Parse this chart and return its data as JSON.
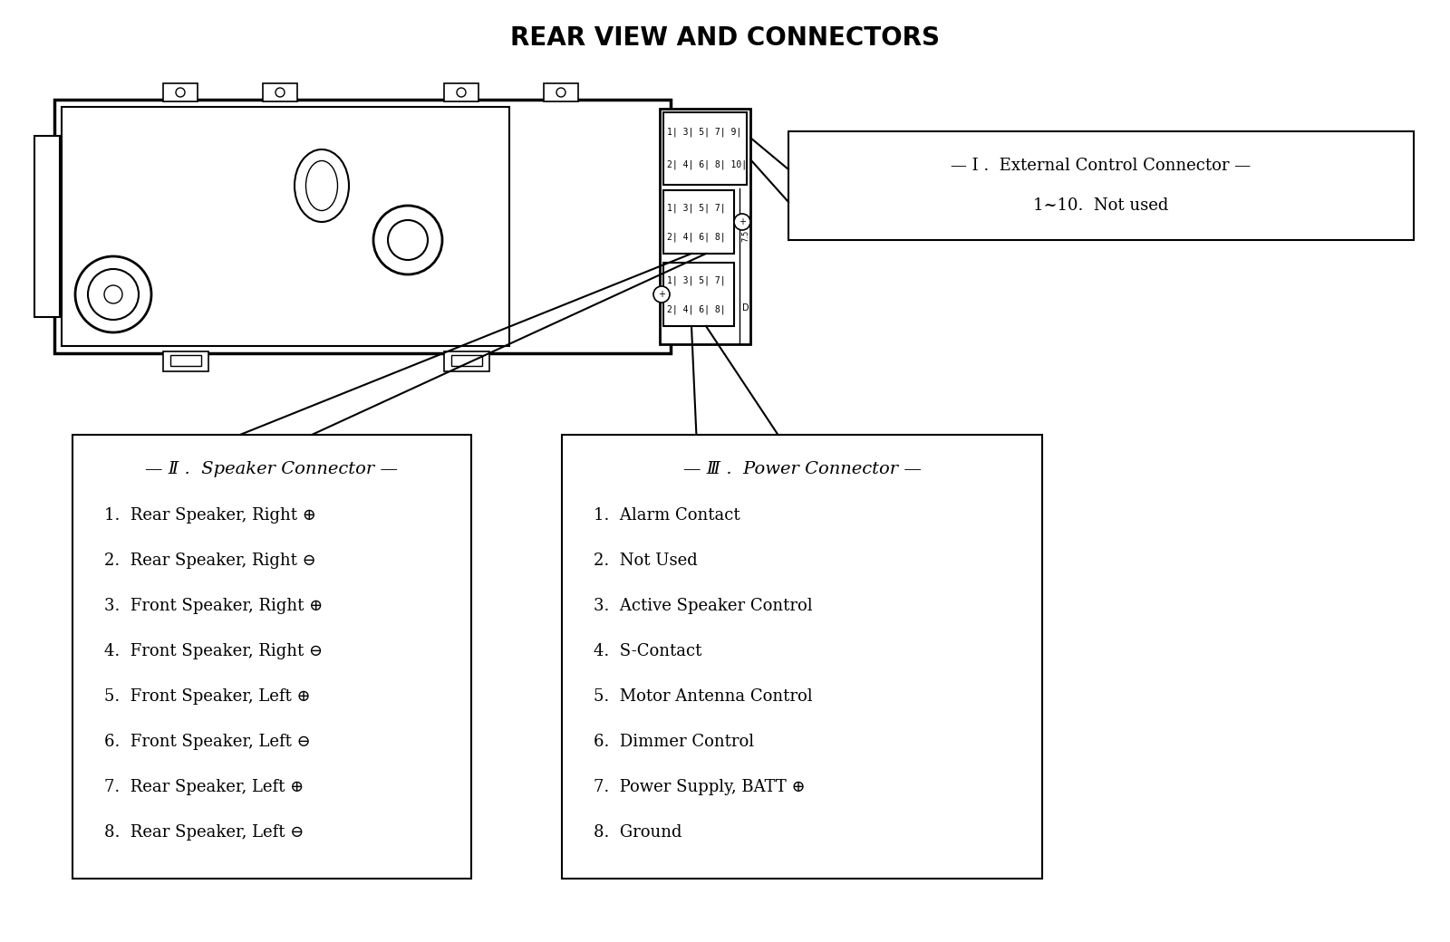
{
  "title": "REAR VIEW AND CONNECTORS",
  "bg_color": "#ffffff",
  "connector_I_title": "— I .  External Control Connector —",
  "connector_I_content": "1~10.  Not used",
  "connector_II_title": "— Ⅱ .  Speaker Connector —",
  "connector_II_items": [
    "1.  Rear Speaker, Right ⊕",
    "2.  Rear Speaker, Right ⊖",
    "3.  Front Speaker, Right ⊕",
    "4.  Front Speaker, Right ⊖",
    "5.  Front Speaker, Left ⊕",
    "6.  Front Speaker, Left ⊖",
    "7.  Rear Speaker, Left ⊕",
    "8.  Rear Speaker, Left ⊖"
  ],
  "connector_III_title": "— Ⅲ .  Power Connector —",
  "connector_III_items": [
    "1.  Alarm Contact",
    "2.  Not Used",
    "3.  Active Speaker Control",
    "4.  S-Contact",
    "5.  Motor Antenna Control",
    "6.  Dimmer Control",
    "7.  Power Supply, BATT ⊕",
    "8.  Ground"
  ]
}
